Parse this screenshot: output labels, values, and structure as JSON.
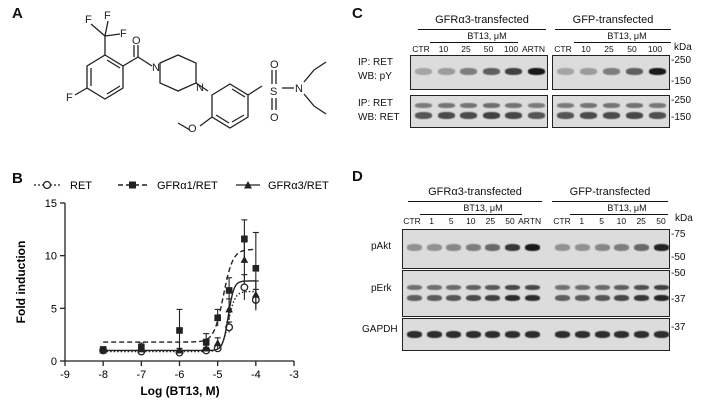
{
  "panel_labels": {
    "a": "A",
    "b": "B",
    "c": "C",
    "d": "D"
  },
  "structure": {
    "atoms": {
      "F_top1": "F",
      "F_top2": "F",
      "F_top3": "F",
      "F_ring": "F",
      "O_carbonyl": "O",
      "N1": "N",
      "N2": "N",
      "O_methoxy": "O",
      "S": "S",
      "O_s1": "O",
      "O_s2": "O",
      "N_amide": "N"
    }
  },
  "legend": {
    "items": [
      {
        "label": "RET",
        "line": "dotted",
        "marker": "circle"
      },
      {
        "label": "GFRα1/RET",
        "line": "dashed",
        "marker": "square"
      },
      {
        "label": "GFRα3/RET",
        "line": "solid",
        "marker": "triangle"
      }
    ]
  },
  "chart_data": {
    "type": "scatter",
    "xlabel": "Log (BT13, M)",
    "ylabel": "Fold induction",
    "xlim": [
      -9,
      -3
    ],
    "ylim": [
      0,
      15
    ],
    "xticks": [
      "-9",
      "-8",
      "-7",
      "-6",
      "-5",
      "-4",
      "-3"
    ],
    "yticks": [
      "0",
      "5",
      "10",
      "15"
    ],
    "series": [
      {
        "name": "RET",
        "marker": "circle",
        "line": "dotted",
        "x": [
          -8,
          -7,
          -6,
          -5.3,
          -5,
          -4.7,
          -4.3,
          -4
        ],
        "y": [
          1.0,
          0.9,
          0.8,
          1.0,
          1.2,
          3.2,
          7.0,
          5.8
        ],
        "err": [
          0.1,
          0.2,
          0.2,
          0.3,
          0.3,
          0.5,
          1.2,
          1.0
        ],
        "fit_bottom": 0.9,
        "fit_top": 6.6,
        "fit_logec50": -4.72,
        "fit_hill": 5
      },
      {
        "name": "GFRα1/RET",
        "marker": "square",
        "line": "dashed",
        "x": [
          -8,
          -7,
          -6,
          -5.3,
          -5,
          -4.7,
          -4.3,
          -4
        ],
        "y": [
          1.1,
          1.3,
          2.9,
          1.8,
          4.1,
          6.7,
          11.6,
          8.8
        ],
        "err": [
          0.2,
          0.4,
          2.0,
          0.8,
          0.8,
          1.2,
          1.8,
          3.4
        ],
        "fit_bottom": 1.8,
        "fit_top": 10.6,
        "fit_logec50": -4.85,
        "fit_hill": 3.5
      },
      {
        "name": "GFRα3/RET",
        "marker": "triangle",
        "line": "solid",
        "x": [
          -8,
          -7,
          -6,
          -5.3,
          -5,
          -4.7,
          -4.3,
          -4
        ],
        "y": [
          1.0,
          1.1,
          1.0,
          1.2,
          1.7,
          4.9,
          9.6,
          6.3
        ],
        "err": [
          0.1,
          0.2,
          0.2,
          0.3,
          0.5,
          1.0,
          1.7,
          1.3
        ],
        "fit_bottom": 1.0,
        "fit_top": 7.6,
        "fit_logec50": -4.72,
        "fit_hill": 6
      }
    ]
  },
  "panel_c": {
    "group_left": "GFRα3-transfected",
    "group_right": "GFP-transfected",
    "conc_left": "BT13, μM",
    "conc_right": "BT13, μM",
    "lanes_left": [
      "CTR",
      "10",
      "25",
      "50",
      "100",
      "ARTN"
    ],
    "lanes_right": [
      "CTR",
      "10",
      "25",
      "50",
      "100"
    ],
    "kda_header": "kDa",
    "row1_label1": "IP: RET",
    "row1_label2": "WB: pY",
    "row2_label1": "IP: RET",
    "row2_label2": "WB: RET",
    "markers_row1": [
      "250",
      "150"
    ],
    "markers_row2": [
      "250",
      "150"
    ]
  },
  "panel_d": {
    "group_left": "GFRα3-transfected",
    "group_right": "GFP-transfected",
    "conc_left": "BT13, μM",
    "conc_right": "BT13, μM",
    "lanes_left": [
      "CTR",
      "1",
      "5",
      "10",
      "25",
      "50",
      "ARTN"
    ],
    "lanes_right": [
      "CTR",
      "1",
      "5",
      "10",
      "25",
      "50"
    ],
    "kda_header": "kDa",
    "row_labels": [
      "pAkt",
      "pErk",
      "GAPDH"
    ],
    "markers_row1": [
      "75",
      "50"
    ],
    "markers_row2": [
      "50",
      "37"
    ],
    "markers_row3": [
      "37"
    ]
  }
}
